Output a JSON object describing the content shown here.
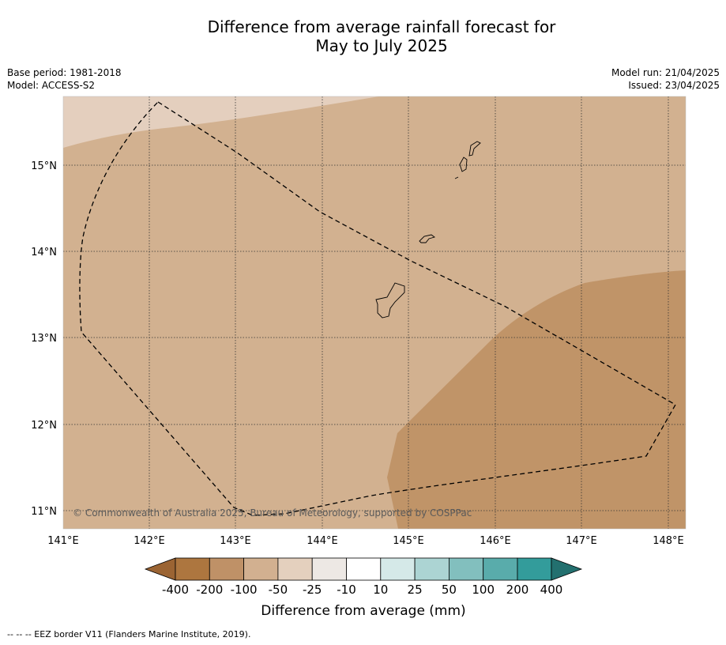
{
  "title": {
    "line1": "Difference from average rainfall forecast for",
    "line2": "May to July 2025"
  },
  "meta_left": {
    "base_period": "Base period: 1981-2018",
    "model": "Model: ACCESS-S2"
  },
  "meta_right": {
    "model_run": "Model run: 21/04/2025",
    "issued": "Issued: 23/04/2025"
  },
  "map": {
    "lat_labels": [
      "15°N",
      "14°N",
      "13°N",
      "12°N",
      "11°N"
    ],
    "lon_labels": [
      "141°E",
      "142°E",
      "143°E",
      "144°E",
      "145°E",
      "146°E",
      "147°E",
      "148°E"
    ],
    "copyright": "© Commonwealth of Australia 2025, Bureau of Meteorology, supported by COSPPac",
    "region_colors": {
      "light": "#e4cfbe",
      "medium": "#d2b190",
      "dark": "#c09468"
    },
    "border_style": "dashed black"
  },
  "colorbar": {
    "title": "Difference from average (mm)",
    "labels": [
      "-400",
      "-200",
      "-100",
      "-50",
      "-25",
      "-10",
      "10",
      "25",
      "50",
      "100",
      "200",
      "400"
    ],
    "colors": [
      "#9b6433",
      "#ad763f",
      "#bf9167",
      "#d2b090",
      "#e4d0be",
      "#ede8e4",
      "#ffffff",
      "#d5e9e8",
      "#acd4d3",
      "#82bfbe",
      "#59acab",
      "#339c9b",
      "#23706f"
    ]
  },
  "footer": {
    "text": "--  --  -- EEZ border V11 (Flanders Marine Institute, 2019)."
  }
}
